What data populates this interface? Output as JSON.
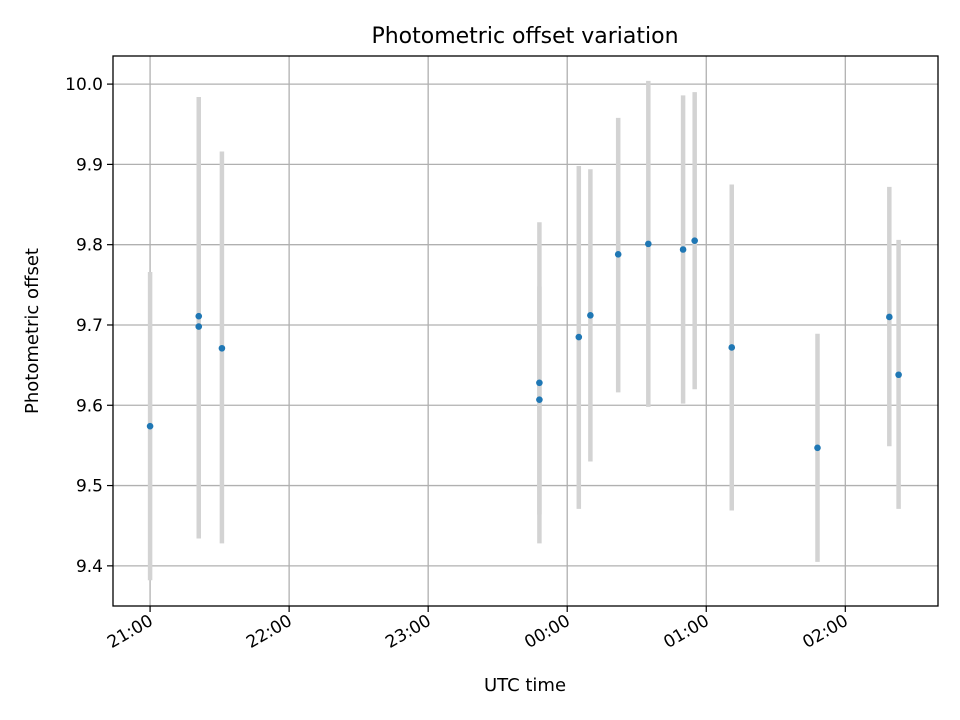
{
  "chart_data": {
    "type": "scatter",
    "title": "Photometric offset variation",
    "xlabel": "UTC time",
    "ylabel": "Photometric offset",
    "x_is_time": true,
    "x_tick_labels": [
      "21:00",
      "22:00",
      "23:00",
      "00:00",
      "01:00",
      "02:00"
    ],
    "y_tick_labels": [
      "9.4",
      "9.5",
      "9.6",
      "9.7",
      "9.8",
      "9.9",
      "10.0"
    ],
    "y_ticks": [
      9.4,
      9.5,
      9.6,
      9.7,
      9.8,
      9.9,
      10.0
    ],
    "ylim": [
      9.35,
      10.035
    ],
    "xlim": [
      "20:44",
      "02:40"
    ],
    "grid": true,
    "colors": {
      "marker": "#1f77b4",
      "errorbar": "#d3d3d3",
      "grid": "#b0b0b0"
    },
    "points": [
      {
        "x": "21:00",
        "y": 9.574,
        "y_low": 9.382,
        "y_high": 9.766
      },
      {
        "x": "21:21",
        "y": 9.711,
        "y_low": 9.46,
        "y_high": 9.962
      },
      {
        "x": "21:21",
        "y": 9.698,
        "y_low": 9.434,
        "y_high": 9.984
      },
      {
        "x": "21:31",
        "y": 9.671,
        "y_low": 9.428,
        "y_high": 9.916
      },
      {
        "x": "23:48",
        "y": 9.628,
        "y_low": 9.464,
        "y_high": 9.828
      },
      {
        "x": "23:48",
        "y": 9.607,
        "y_low": 9.428,
        "y_high": 9.748
      },
      {
        "x": "00:05",
        "y": 9.685,
        "y_low": 9.471,
        "y_high": 9.898
      },
      {
        "x": "00:10",
        "y": 9.712,
        "y_low": 9.53,
        "y_high": 9.894
      },
      {
        "x": "00:22",
        "y": 9.788,
        "y_low": 9.616,
        "y_high": 9.958
      },
      {
        "x": "00:35",
        "y": 9.801,
        "y_low": 9.598,
        "y_high": 10.004
      },
      {
        "x": "00:50",
        "y": 9.794,
        "y_low": 9.602,
        "y_high": 9.986
      },
      {
        "x": "00:55",
        "y": 9.805,
        "y_low": 9.62,
        "y_high": 9.99
      },
      {
        "x": "01:11",
        "y": 9.672,
        "y_low": 9.469,
        "y_high": 9.875
      },
      {
        "x": "01:48",
        "y": 9.547,
        "y_low": 9.405,
        "y_high": 9.689
      },
      {
        "x": "02:19",
        "y": 9.71,
        "y_low": 9.549,
        "y_high": 9.872
      },
      {
        "x": "02:23",
        "y": 9.638,
        "y_low": 9.471,
        "y_high": 9.806
      }
    ]
  }
}
